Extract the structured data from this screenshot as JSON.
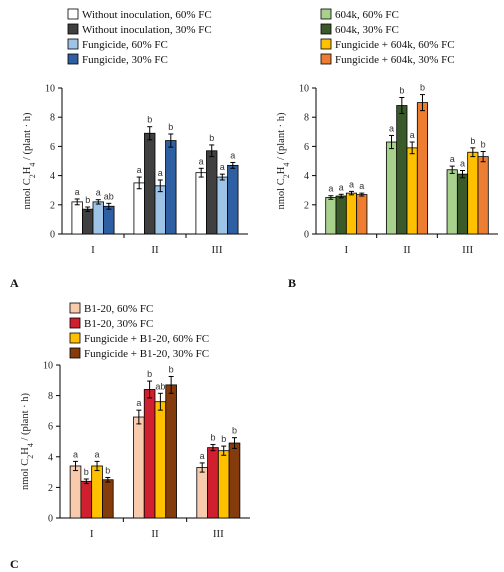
{
  "chart_data": [
    {
      "type": "bar",
      "panel_label": "A",
      "ylabel": "nmol C2H4 / (plant · h)",
      "ylim": [
        0,
        10
      ],
      "yticks": [
        0,
        2,
        4,
        6,
        8,
        10
      ],
      "categories": [
        "I",
        "II",
        "III"
      ],
      "legend_placement": "top",
      "series": [
        {
          "name": "Without inoculation, 60% FC",
          "color": "#ffffff",
          "values": [
            2.2,
            3.5,
            4.2
          ],
          "errors": [
            0.2,
            0.4,
            0.3
          ],
          "letters": [
            "a",
            "a",
            "a"
          ]
        },
        {
          "name": "Without inoculation, 30% FC",
          "color": "#404040",
          "values": [
            1.7,
            6.9,
            5.7
          ],
          "errors": [
            0.15,
            0.45,
            0.4
          ],
          "letters": [
            "b",
            "b",
            "b"
          ]
        },
        {
          "name": "Fungicide, 60% FC",
          "color": "#9dc3e6",
          "values": [
            2.2,
            3.3,
            3.9
          ],
          "errors": [
            0.15,
            0.4,
            0.2
          ],
          "letters": [
            "a",
            "a",
            "a"
          ]
        },
        {
          "name": "Fungicide, 30% FC",
          "color": "#2e5fa3",
          "values": [
            1.9,
            6.4,
            4.7
          ],
          "errors": [
            0.2,
            0.45,
            0.2
          ],
          "letters": [
            "ab",
            "b",
            "a"
          ]
        }
      ]
    },
    {
      "type": "bar",
      "panel_label": "B",
      "ylabel": "nmol C2H4 / (plant · h)",
      "ylim": [
        0,
        10
      ],
      "yticks": [
        0,
        2,
        4,
        6,
        8,
        10
      ],
      "categories": [
        "I",
        "II",
        "III"
      ],
      "legend_placement": "top",
      "series": [
        {
          "name": "604k, 60% FC",
          "color": "#a9d18e",
          "values": [
            2.5,
            6.3,
            4.4
          ],
          "errors": [
            0.12,
            0.45,
            0.25
          ],
          "letters": [
            "a",
            "a",
            "a"
          ]
        },
        {
          "name": "604k, 30% FC",
          "color": "#3b5a2a",
          "values": [
            2.6,
            8.8,
            4.1
          ],
          "errors": [
            0.12,
            0.55,
            0.25
          ],
          "letters": [
            "a",
            "b",
            "a"
          ]
        },
        {
          "name": "Fungicide + 604k, 60% FC",
          "color": "#ffc000",
          "values": [
            2.8,
            5.9,
            5.6
          ],
          "errors": [
            0.12,
            0.4,
            0.3
          ],
          "letters": [
            "a",
            "a",
            "b"
          ]
        },
        {
          "name": "Fungicide + 604k, 30% FC",
          "color": "#ed7d31",
          "values": [
            2.7,
            9.0,
            5.3
          ],
          "errors": [
            0.1,
            0.55,
            0.35
          ],
          "letters": [
            "a",
            "b",
            "b"
          ]
        }
      ]
    },
    {
      "type": "bar",
      "panel_label": "C",
      "ylabel": "nmol C2H4 / (plant · h)",
      "ylim": [
        0,
        10
      ],
      "yticks": [
        0,
        2,
        4,
        6,
        8,
        10
      ],
      "categories": [
        "I",
        "II",
        "III"
      ],
      "legend_placement": "top",
      "series": [
        {
          "name": "B1-20, 60% FC",
          "color": "#f8cbad",
          "values": [
            3.4,
            6.6,
            3.3
          ],
          "errors": [
            0.3,
            0.45,
            0.3
          ],
          "letters": [
            "a",
            "a",
            "a"
          ]
        },
        {
          "name": "B1-20, 30% FC",
          "color": "#d0202f",
          "values": [
            2.4,
            8.4,
            4.6
          ],
          "errors": [
            0.15,
            0.55,
            0.2
          ],
          "letters": [
            "b",
            "b",
            "b"
          ]
        },
        {
          "name": "Fungicide + B1-20, 60% FC",
          "color": "#ffc000",
          "values": [
            3.4,
            7.6,
            4.4
          ],
          "errors": [
            0.3,
            0.55,
            0.3
          ],
          "letters": [
            "a",
            "ab",
            "b"
          ]
        },
        {
          "name": "Fungicide + B1-20, 30% FC",
          "color": "#843c0c",
          "values": [
            2.5,
            8.7,
            4.9
          ],
          "errors": [
            0.15,
            0.55,
            0.35
          ],
          "letters": [
            "b",
            "b",
            "b"
          ]
        }
      ]
    }
  ]
}
